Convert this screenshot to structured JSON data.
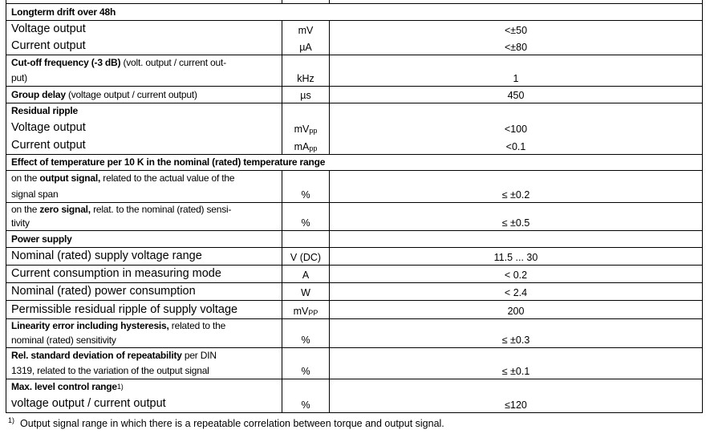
{
  "rows": [
    {
      "type": "section",
      "lines": [
        {
          "label": [
            {
              "t": "Longterm drift over 48h",
              "b": true
            }
          ]
        }
      ]
    },
    {
      "type": "row",
      "lines": [
        {
          "size": "large",
          "label": [
            {
              "t": "Voltage output"
            }
          ],
          "unit": "mV",
          "value": "<±50"
        },
        {
          "size": "large",
          "label": [
            {
              "t": "Current output"
            }
          ],
          "unit": "µA",
          "value": "<±80"
        }
      ]
    },
    {
      "type": "row",
      "lines": [
        {
          "size": "small",
          "label": [
            {
              "t": "Cut-off frequency (-3 dB)",
              "b": true
            },
            {
              "t": " (volt. output / current out-"
            }
          ]
        },
        {
          "size": "small",
          "label": [
            {
              "t": "put)"
            }
          ],
          "unit": "kHz",
          "value": "1"
        }
      ]
    },
    {
      "type": "row",
      "lines": [
        {
          "size": "small",
          "label": [
            {
              "t": "Group delay",
              "b": true
            },
            {
              "t": " (voltage output / current output)"
            }
          ],
          "unit": "µs",
          "value": "450"
        }
      ]
    },
    {
      "type": "row",
      "lines": [
        {
          "size": "small",
          "label": [
            {
              "t": "Residual ripple",
              "b": true
            }
          ]
        },
        {
          "size": "large",
          "label": [
            {
              "t": "Voltage output"
            }
          ],
          "unit": "mV",
          "unit_sub": "pp",
          "value": "<100"
        },
        {
          "size": "large",
          "label": [
            {
              "t": "Current output"
            }
          ],
          "unit": "mA",
          "unit_sub": "pp",
          "value": "<0.1"
        }
      ]
    },
    {
      "type": "section",
      "lines": [
        {
          "label": [
            {
              "t": "Effect of temperature per 10 K in the nominal (rated) temperature range",
              "b": true
            }
          ]
        }
      ]
    },
    {
      "type": "row",
      "lines": [
        {
          "size": "small",
          "label": [
            {
              "t": "on the "
            },
            {
              "t": "output signal,",
              "b": true
            },
            {
              "t": " related to the actual value of the"
            }
          ]
        },
        {
          "size": "small",
          "label": [
            {
              "t": "signal span"
            }
          ],
          "unit": "%",
          "value": "≤ ±0.2"
        }
      ]
    },
    {
      "type": "row",
      "lines": [
        {
          "size": "small",
          "label": [
            {
              "t": "on the "
            },
            {
              "t": "zero signal,",
              "b": true
            },
            {
              "t": " relat. to the nominal (rated) sensi-"
            }
          ]
        },
        {
          "size": "small",
          "label": [
            {
              "t": "tivity"
            }
          ],
          "unit": "%",
          "value": "≤ ±0.5"
        }
      ]
    },
    {
      "type": "row",
      "lines": [
        {
          "size": "small",
          "label": [
            {
              "t": "Power supply",
              "b": true
            }
          ]
        }
      ]
    },
    {
      "type": "row",
      "lines": [
        {
          "size": "large",
          "label": [
            {
              "t": "Nominal (rated) supply voltage range"
            }
          ],
          "unit": "V (DC)",
          "value": "11.5 ... 30"
        }
      ]
    },
    {
      "type": "row",
      "lines": [
        {
          "size": "large",
          "label": [
            {
              "t": "Current consumption in measuring mode"
            }
          ],
          "unit": "A",
          "value": "< 0.2"
        }
      ]
    },
    {
      "type": "row",
      "lines": [
        {
          "size": "large",
          "label": [
            {
              "t": "Nominal (rated) power consumption"
            }
          ],
          "unit": "W",
          "value": "< 2.4"
        }
      ]
    },
    {
      "type": "row",
      "lines": [
        {
          "size": "large",
          "label": [
            {
              "t": "Permissible residual ripple of supply voltage"
            }
          ],
          "unit": "mV",
          "unit_sub": "PP",
          "value": "200"
        }
      ]
    },
    {
      "type": "row",
      "lines": [
        {
          "size": "small",
          "label": [
            {
              "t": "Linearity error including hysteresis,",
              "b": true
            },
            {
              "t": " related to the"
            }
          ]
        },
        {
          "size": "small",
          "label": [
            {
              "t": "nominal (rated) sensitivity"
            }
          ],
          "unit": "%",
          "value": "≤ ±0.3"
        }
      ]
    },
    {
      "type": "row",
      "lines": [
        {
          "size": "small",
          "label": [
            {
              "t": "Rel. standard deviation of repeatability",
              "b": true
            },
            {
              "t": " per DIN"
            }
          ]
        },
        {
          "size": "small",
          "label": [
            {
              "t": "1319, related to the variation of the output signal"
            }
          ],
          "unit": "%",
          "value": "≤ ±0.1"
        }
      ]
    },
    {
      "type": "row",
      "lines": [
        {
          "size": "small",
          "label": [
            {
              "t": "Max. level control range",
              "b": true
            }
          ],
          "label_sup": "1)"
        },
        {
          "size": "large",
          "label": [
            {
              "t": "voltage output / current output"
            }
          ],
          "unit": "%",
          "value": "≤120"
        }
      ]
    }
  ],
  "footnote": {
    "marker": "1)",
    "text": "Output signal range in which there is a repeatable correlation between torque and output signal."
  }
}
